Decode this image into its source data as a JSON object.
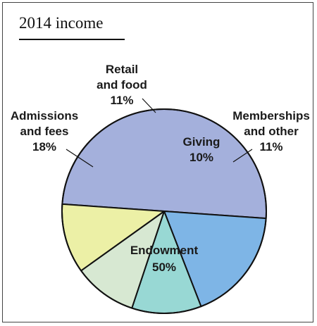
{
  "chart_data": {
    "type": "pie",
    "title": "2014 income",
    "slices": [
      {
        "key": "endowment",
        "label_lines": [
          "Endowment",
          "50%"
        ],
        "value": 50,
        "color": "#a4b0dc"
      },
      {
        "key": "admissions",
        "label_lines": [
          "Admissions",
          "and fees",
          "18%"
        ],
        "value": 18,
        "color": "#7eb5e6"
      },
      {
        "key": "retail",
        "label_lines": [
          "Retail",
          "and food",
          "11%"
        ],
        "value": 11,
        "color": "#98d8d4"
      },
      {
        "key": "giving",
        "label_lines": [
          "Giving",
          "10%"
        ],
        "value": 10,
        "color": "#d7e8d2"
      },
      {
        "key": "memberships",
        "label_lines": [
          "Memberships",
          "and other",
          "11%"
        ],
        "value": 11,
        "color": "#ecf0a6"
      }
    ]
  }
}
